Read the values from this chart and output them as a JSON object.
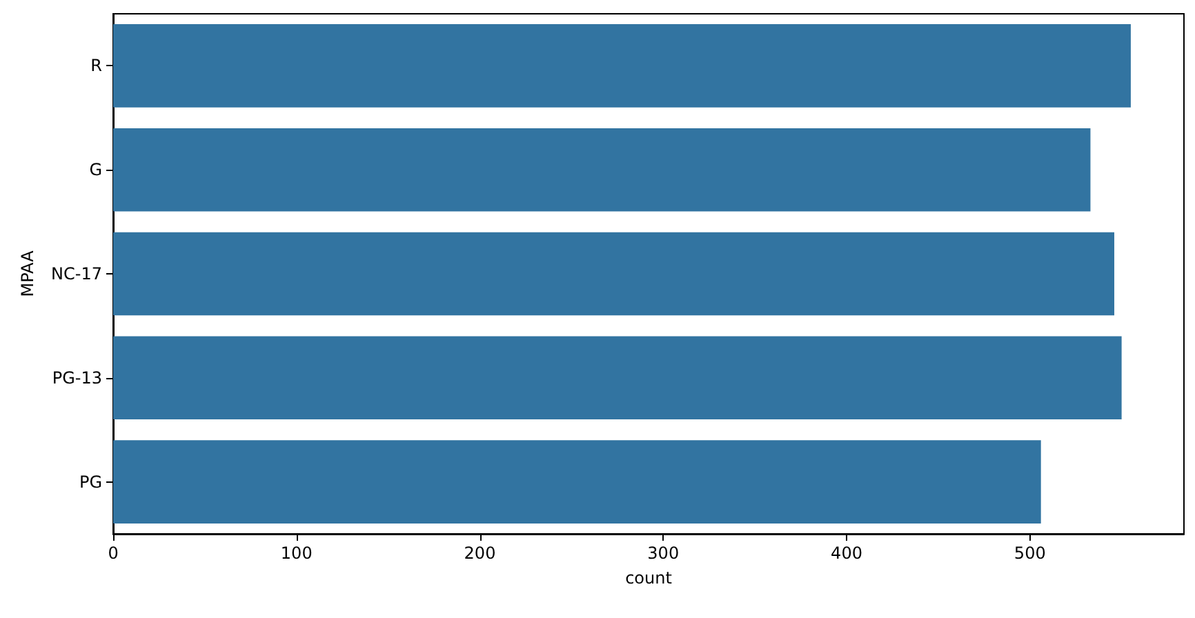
{
  "chart_data": {
    "type": "bar",
    "orientation": "horizontal",
    "xlabel": "count",
    "ylabel": "MPAA",
    "categories": [
      "R",
      "G",
      "NC-17",
      "PG-13",
      "PG"
    ],
    "values": [
      555,
      533,
      546,
      550,
      506
    ],
    "color": "#3274a1",
    "xlim": [
      0,
      584
    ],
    "xticks": [
      0,
      100,
      200,
      300,
      400,
      500
    ],
    "grid": false
  }
}
